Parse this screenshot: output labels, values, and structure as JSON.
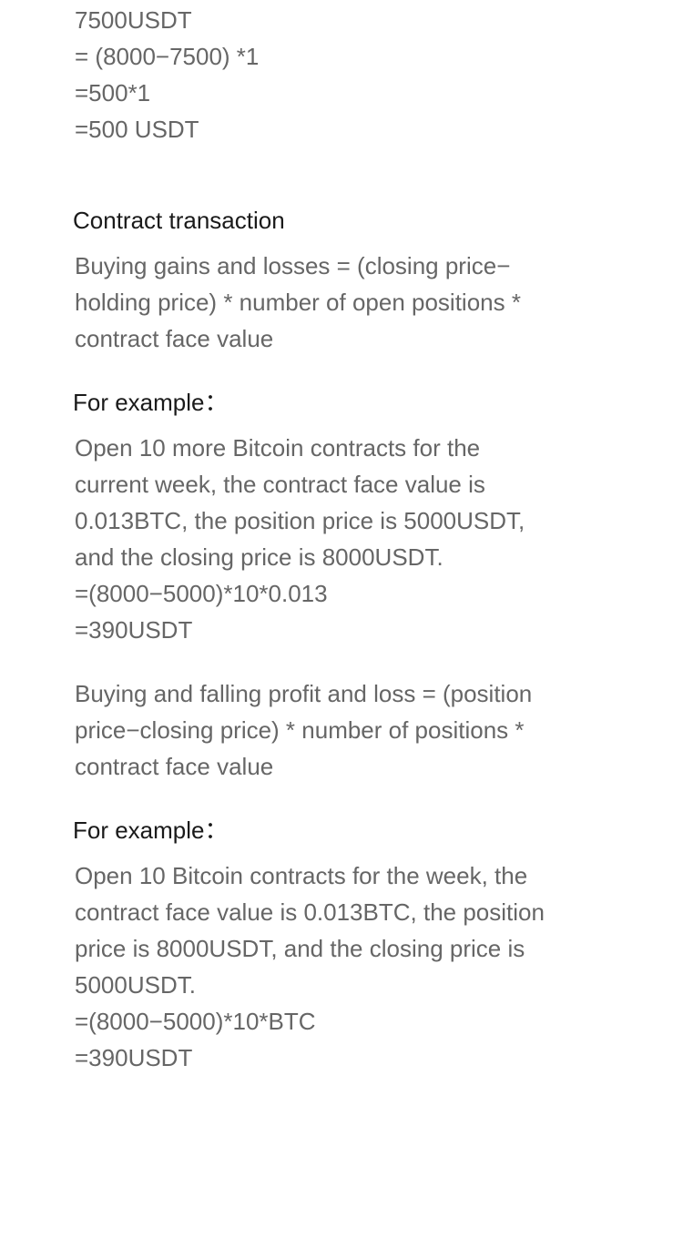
{
  "intro_calc": {
    "lines": [
      "7500USDT",
      "= (8000−7500) *1",
      "=500*1",
      "=500 USDT"
    ]
  },
  "contract_section": {
    "title": "Contract transaction",
    "buy_formula": {
      "lines": [
        "Buying gains and losses = (closing price−",
        "holding price) * number of open positions *",
        "contract face value"
      ]
    },
    "example1": {
      "label": "For example：",
      "lines": [
        "Open 10 more Bitcoin contracts for the",
        "current week, the contract face value is",
        "0.013BTC, the position price is 5000USDT,",
        "and the closing price is 8000USDT.",
        "=(8000−5000)*10*0.013",
        "=390USDT"
      ]
    },
    "sell_formula": {
      "lines": [
        "Buying and falling profit and loss = (position",
        "price−closing price) * number of positions *",
        "contract face value"
      ]
    },
    "example2": {
      "label": "For example：",
      "lines": [
        "Open 10 Bitcoin contracts for the week, the",
        "contract face value is 0.013BTC, the position",
        "price is 8000USDT, and the closing price is",
        "5000USDT.",
        "=(8000−5000)*10*BTC",
        "=390USDT"
      ]
    }
  },
  "colors": {
    "body_text": "#666666",
    "heading_text": "#1a1a1a",
    "background": "#ffffff"
  }
}
